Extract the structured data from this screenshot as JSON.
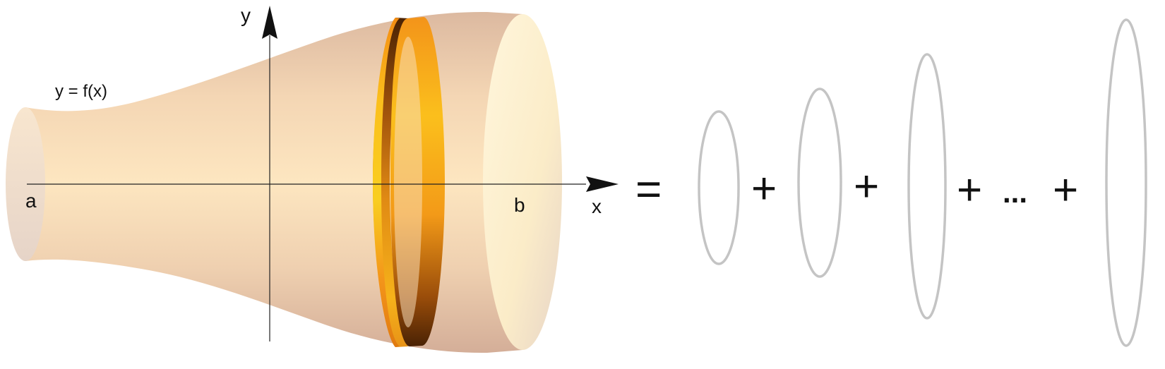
{
  "labels": {
    "y_axis": "y",
    "x_axis": "x",
    "function": "y = f(x)",
    "a": "a",
    "b": "b",
    "equals": "=",
    "plus": "+",
    "ellipsis": "..."
  },
  "colors": {
    "solid_light": "#fde9c4",
    "solid_dark": "#d9b49a",
    "ring_light": "#f9c41d",
    "ring_mid": "#f59a18",
    "ring_dark": "#5a2a05",
    "disk_stroke": "#c4c4c4",
    "axis": "#222222"
  },
  "disks_count": 5
}
